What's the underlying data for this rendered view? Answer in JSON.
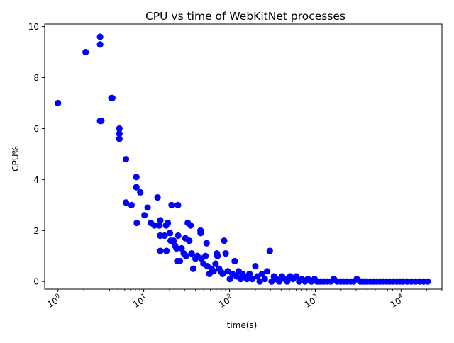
{
  "chart_data": {
    "type": "scatter",
    "title": "CPU vs time of WebKitNet processes",
    "xlabel": "time(s)",
    "ylabel": "CPU%",
    "xscale": "log",
    "xlim": [
      0.7,
      30000
    ],
    "ylim": [
      -0.3,
      10.1
    ],
    "grid": false,
    "legend": "none",
    "marker_color": "#0000ff",
    "x_ticks": [
      {
        "value": 1,
        "base": "10",
        "exp": "0"
      },
      {
        "value": 10,
        "base": "10",
        "exp": "1"
      },
      {
        "value": 100,
        "base": "10",
        "exp": "2"
      },
      {
        "value": 1000,
        "base": "10",
        "exp": "3"
      },
      {
        "value": 10000,
        "base": "10",
        "exp": "4"
      }
    ],
    "y_ticks": [
      0,
      2,
      4,
      6,
      8,
      10
    ],
    "points": [
      [
        1,
        7.0
      ],
      [
        2.1,
        9.0
      ],
      [
        3.1,
        9.6
      ],
      [
        3.1,
        9.3
      ],
      [
        3.1,
        6.3
      ],
      [
        3.2,
        6.3
      ],
      [
        4.2,
        7.2
      ],
      [
        4.3,
        7.2
      ],
      [
        5.2,
        6.0
      ],
      [
        5.2,
        5.8
      ],
      [
        5.2,
        5.6
      ],
      [
        6.2,
        4.8
      ],
      [
        6.2,
        3.1
      ],
      [
        7.2,
        3.0
      ],
      [
        8.2,
        4.1
      ],
      [
        8.2,
        3.7
      ],
      [
        8.3,
        2.3
      ],
      [
        9.1,
        3.5
      ],
      [
        10.2,
        2.6
      ],
      [
        11.1,
        2.9
      ],
      [
        12.1,
        2.3
      ],
      [
        13.3,
        2.2
      ],
      [
        14.5,
        3.3
      ],
      [
        15.2,
        2.2
      ],
      [
        15.6,
        2.4
      ],
      [
        15.5,
        1.8
      ],
      [
        15.6,
        1.2
      ],
      [
        17.5,
        1.8
      ],
      [
        18.2,
        2.2
      ],
      [
        18.4,
        1.2
      ],
      [
        19.1,
        2.3
      ],
      [
        20.2,
        1.9
      ],
      [
        20.6,
        1.6
      ],
      [
        21.1,
        3.0
      ],
      [
        22.3,
        1.6
      ],
      [
        23.2,
        1.4
      ],
      [
        24.1,
        1.3
      ],
      [
        24.6,
        0.8
      ],
      [
        25.1,
        3.0
      ],
      [
        25.2,
        1.8
      ],
      [
        26.3,
        0.8
      ],
      [
        27.6,
        1.3
      ],
      [
        29.3,
        1.1
      ],
      [
        30.6,
        1.7
      ],
      [
        31.1,
        1.0
      ],
      [
        32.6,
        2.3
      ],
      [
        33.9,
        1.6
      ],
      [
        35.2,
        2.2
      ],
      [
        36.1,
        1.1
      ],
      [
        37.8,
        0.5
      ],
      [
        40.1,
        0.9
      ],
      [
        42.2,
        1.0
      ],
      [
        45.9,
        2.0
      ],
      [
        46.1,
        1.9
      ],
      [
        47.3,
        0.9
      ],
      [
        49.6,
        0.7
      ],
      [
        52.5,
        1.0
      ],
      [
        54.1,
        1.5
      ],
      [
        55.2,
        0.6
      ],
      [
        58.3,
        0.3
      ],
      [
        61.9,
        0.5
      ],
      [
        65.2,
        0.4
      ],
      [
        68.8,
        0.7
      ],
      [
        71.2,
        1.1
      ],
      [
        72.4,
        1.0
      ],
      [
        75.6,
        0.5
      ],
      [
        79.1,
        0.4
      ],
      [
        83.1,
        0.3
      ],
      [
        86.5,
        1.6
      ],
      [
        90.2,
        1.1
      ],
      [
        95.3,
        0.4
      ],
      [
        101,
        0.1
      ],
      [
        108,
        0.3
      ],
      [
        115,
        0.8
      ],
      [
        121,
        0.2
      ],
      [
        128,
        0.4
      ],
      [
        135,
        0.1
      ],
      [
        142,
        0.3
      ],
      [
        150,
        0.2
      ],
      [
        160,
        0.1
      ],
      [
        171,
        0.3
      ],
      [
        185,
        0.1
      ],
      [
        200,
        0.6
      ],
      [
        212,
        0.2
      ],
      [
        225,
        0.0
      ],
      [
        240,
        0.3
      ],
      [
        258,
        0.1
      ],
      [
        275,
        0.4
      ],
      [
        295,
        1.2
      ],
      [
        310,
        0.0
      ],
      [
        330,
        0.2
      ],
      [
        350,
        0.1
      ],
      [
        380,
        0.0
      ],
      [
        410,
        0.2
      ],
      [
        440,
        0.1
      ],
      [
        470,
        0.0
      ],
      [
        510,
        0.2
      ],
      [
        550,
        0.1
      ],
      [
        600,
        0.2
      ],
      [
        650,
        0.0
      ],
      [
        700,
        0.1
      ],
      [
        760,
        0.0
      ],
      [
        820,
        0.1
      ],
      [
        900,
        0.0
      ],
      [
        980,
        0.1
      ],
      [
        1050,
        0.0
      ],
      [
        1150,
        0.0
      ],
      [
        1250,
        0.0
      ],
      [
        1380,
        0.0
      ],
      [
        1520,
        0.0
      ],
      [
        1650,
        0.1
      ],
      [
        1800,
        0.0
      ],
      [
        1980,
        0.0
      ],
      [
        2150,
        0.0
      ],
      [
        2350,
        0.0
      ],
      [
        2580,
        0.0
      ],
      [
        2800,
        0.0
      ],
      [
        3050,
        0.1
      ],
      [
        3350,
        0.0
      ],
      [
        3650,
        0.0
      ],
      [
        4000,
        0.0
      ],
      [
        4350,
        0.0
      ],
      [
        4750,
        0.0
      ],
      [
        5200,
        0.0
      ],
      [
        5650,
        0.0
      ],
      [
        6200,
        0.0
      ],
      [
        6800,
        0.0
      ],
      [
        7400,
        0.0
      ],
      [
        8100,
        0.0
      ],
      [
        8900,
        0.0
      ],
      [
        9700,
        0.0
      ],
      [
        10600,
        0.0
      ],
      [
        11800,
        0.0
      ],
      [
        13200,
        0.0
      ],
      [
        14800,
        0.0
      ],
      [
        16500,
        0.0
      ],
      [
        18300,
        0.0
      ],
      [
        20500,
        0.0
      ]
    ]
  }
}
